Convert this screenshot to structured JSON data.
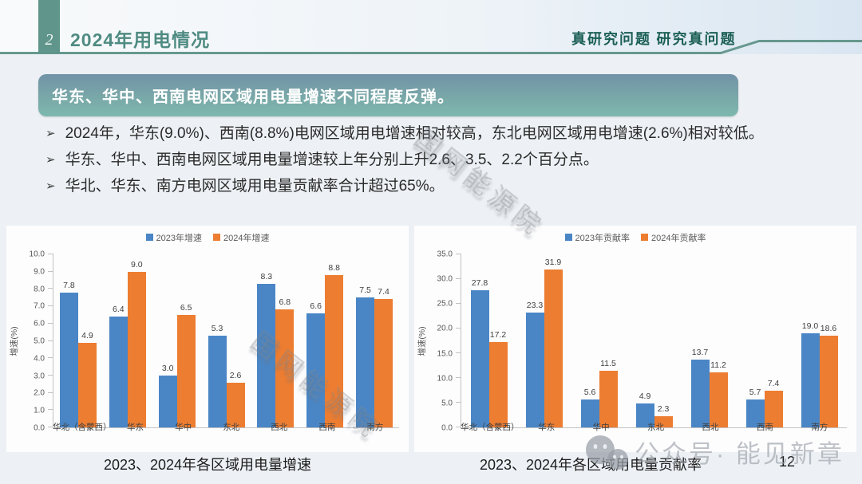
{
  "header": {
    "slide_number": "2",
    "title": "2024年用电情况",
    "slogan": "真研究问题 研究真问题"
  },
  "banner": {
    "text": "华东、华中、西南电网区域用电量增速不同程度反弹。"
  },
  "bullets": [
    "2024年，华东(9.0%)、西南(8.8%)电网区域用电增速相对较高，东北电网区域用电增速(2.6%)相对较低。",
    "华东、华中、西南电网区域用电量增速较上年分别上升2.6、3.5、2.2个百分点。",
    "华北、华东、南方电网区域用电量贡献率合计超过65%。"
  ],
  "watermarks": {
    "diagonal_text": "国网能源院",
    "bottom_text": "公众号· 能见新章"
  },
  "footer": {
    "left_caption": "2023、2024年各区域用电量增速",
    "right_caption": "2023、2024年各区域用电量贡献率",
    "page_number": "12"
  },
  "colors": {
    "accent_teal": "#5F958B",
    "title_teal": "#4F8B82",
    "slogan_teal": "#1B5F55",
    "series_blue": "#4A86C6",
    "series_orange": "#ED7D31"
  },
  "chart_data": [
    {
      "type": "bar",
      "title": "2023、2024年各区域用电量增速",
      "categories": [
        "华北（含蒙西）",
        "华东",
        "华中",
        "东北",
        "西北",
        "西南",
        "南方"
      ],
      "series": [
        {
          "name": "2023年增速",
          "color": "#4A86C6",
          "values": [
            7.8,
            6.4,
            3.0,
            5.3,
            8.3,
            6.6,
            7.5
          ]
        },
        {
          "name": "2024年增速",
          "color": "#ED7D31",
          "values": [
            4.9,
            9.0,
            6.5,
            2.6,
            6.8,
            8.8,
            7.4
          ]
        }
      ],
      "xlabel": "",
      "ylabel": "增速(%)",
      "ylim": [
        0,
        10
      ],
      "yticks": [
        "0.0",
        "1.0",
        "2.0",
        "3.0",
        "4.0",
        "5.0",
        "6.0",
        "7.0",
        "8.0",
        "9.0",
        "10.0"
      ],
      "grid": false,
      "legend_position": "top-center",
      "data_labels": true
    },
    {
      "type": "bar",
      "title": "2023、2024年各区域用电量贡献率",
      "categories": [
        "华北（含蒙西）",
        "华东",
        "华中",
        "东北",
        "西北",
        "西南",
        "南方"
      ],
      "series": [
        {
          "name": "2023年贡献率",
          "color": "#4A86C6",
          "values": [
            27.8,
            23.3,
            5.6,
            4.9,
            13.7,
            5.7,
            19.0
          ]
        },
        {
          "name": "2024年贡献率",
          "color": "#ED7D31",
          "values": [
            17.2,
            31.9,
            11.5,
            2.3,
            11.2,
            7.4,
            18.6
          ]
        }
      ],
      "xlabel": "",
      "ylabel": "增速(%)",
      "ylim": [
        0,
        35
      ],
      "yticks": [
        "0.0",
        "5.0",
        "10.0",
        "15.0",
        "20.0",
        "25.0",
        "30.0",
        "35.0"
      ],
      "grid": false,
      "legend_position": "top-center",
      "data_labels": true
    }
  ]
}
